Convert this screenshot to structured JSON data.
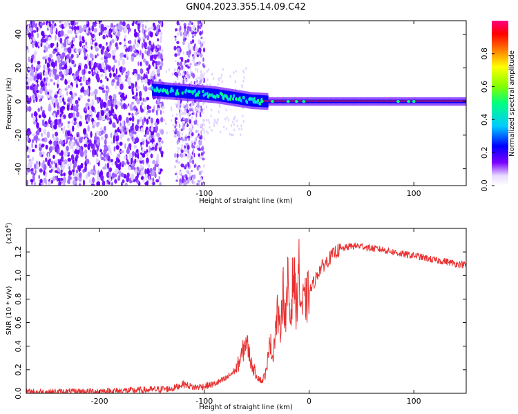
{
  "title": "GN04.2023.355.14.09.C42",
  "chart_data": [
    {
      "type": "heatmap",
      "xlabel": "Height of straight line (km)",
      "ylabel": "Frequency (Hz)",
      "xlim": [
        -270,
        150
      ],
      "ylim": [
        -50,
        48
      ],
      "xticks": [
        -200,
        -100,
        0,
        100
      ],
      "yticks": [
        -40,
        -20,
        0,
        20,
        40
      ],
      "xtick_labels": [
        "-200",
        "-100",
        "0",
        "100"
      ],
      "ytick_labels": [
        "-40",
        "-20",
        "0",
        "20",
        "40"
      ],
      "colorbar": {
        "label": "Normalized spectral amplitude",
        "range": [
          0,
          1
        ],
        "ticks": [
          0,
          0.2,
          0.4,
          0.6,
          0.8
        ],
        "tick_labels": [
          "0.0",
          "0.2",
          "0.4",
          "0.6",
          "0.8"
        ],
        "colormap": "rainbow-white-to-red"
      },
      "ridge_line": {
        "x": [
          -150,
          -130,
          -110,
          -90,
          -70,
          -55,
          -40,
          -20,
          0,
          50,
          100,
          150
        ],
        "y": [
          7,
          6,
          5,
          4,
          2,
          0.5,
          0,
          0,
          0,
          0,
          0,
          0
        ]
      }
    },
    {
      "type": "line",
      "xlabel": "Height of straight line (km)",
      "ylabel": "SNR (10 * v/v)",
      "y_scale_label": "(x10",
      "y_scale_exponent": "4",
      "y_scale_suffix": ")",
      "xlim": [
        -270,
        150
      ],
      "ylim": [
        0,
        1.4
      ],
      "xticks": [
        -200,
        -100,
        0,
        100
      ],
      "yticks": [
        0,
        0.2,
        0.4,
        0.6,
        0.8,
        1.0,
        1.2
      ],
      "xtick_labels": [
        "-200",
        "-100",
        "0",
        "100"
      ],
      "ytick_labels": [
        "0.0",
        "0.2",
        "0.4",
        "0.6",
        "0.8",
        "1.0",
        "1.2"
      ],
      "series": [
        {
          "color": "#e83030",
          "x": [
            -270,
            -240,
            -210,
            -180,
            -150,
            -130,
            -120,
            -110,
            -100,
            -90,
            -80,
            -70,
            -65,
            -60,
            -55,
            -50,
            -45,
            -40,
            -38,
            -35,
            -30,
            -28,
            -25,
            -22,
            -20,
            -18,
            -15,
            -12,
            -10,
            -8,
            -5,
            -2,
            0,
            5,
            10,
            15,
            20,
            25,
            30,
            40,
            50,
            60,
            70,
            80,
            90,
            100,
            110,
            120,
            130,
            140,
            150
          ],
          "y": [
            0.01,
            0.01,
            0.015,
            0.02,
            0.03,
            0.04,
            0.08,
            0.05,
            0.06,
            0.08,
            0.12,
            0.2,
            0.3,
            0.45,
            0.25,
            0.15,
            0.1,
            0.2,
            0.5,
            0.3,
            0.7,
            0.5,
            0.9,
            0.6,
            1.0,
            0.6,
            1.05,
            0.7,
            1.1,
            0.75,
            0.75,
            0.8,
            0.85,
            0.95,
            1.05,
            1.1,
            1.15,
            1.2,
            1.22,
            1.25,
            1.25,
            1.23,
            1.22,
            1.2,
            1.18,
            1.17,
            1.15,
            1.13,
            1.12,
            1.1,
            1.09
          ]
        }
      ]
    }
  ]
}
